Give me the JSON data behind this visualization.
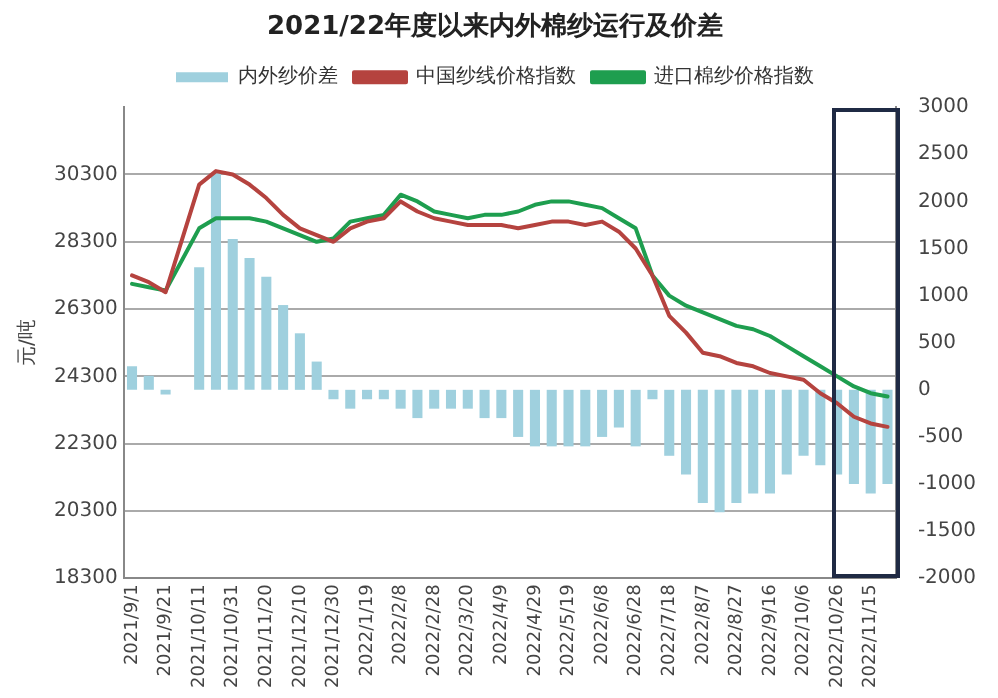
{
  "chart_data": {
    "type": "line",
    "title": "2021/22年度以来内外棉纱运行及价差",
    "ylabel": "元/吨",
    "categories": [
      "2021/9/1",
      null,
      "2021/9/21",
      null,
      "2021/10/11",
      null,
      "2021/10/31",
      null,
      "2021/11/20",
      null,
      "2021/12/10",
      null,
      "2021/12/30",
      null,
      "2022/1/19",
      null,
      "2022/2/8",
      null,
      "2022/2/28",
      null,
      "2022/3/20",
      null,
      "2022/4/9",
      null,
      "2022/4/29",
      null,
      "2022/5/19",
      null,
      "2022/6/8",
      null,
      "2022/6/28",
      null,
      "2022/7/18",
      null,
      "2022/8/7",
      null,
      "2022/8/27",
      null,
      "2022/9/16",
      null,
      "2022/10/6",
      null,
      "2022/10/26",
      null,
      "2022/11/15",
      null
    ],
    "series": [
      {
        "name": "内外纱价差",
        "type": "bar",
        "axis": "y2",
        "color": "#9fd0de",
        "values": [
          250,
          150,
          -50,
          null,
          1300,
          2300,
          1600,
          1400,
          1200,
          900,
          600,
          300,
          -100,
          -200,
          -100,
          -100,
          -200,
          -300,
          -200,
          -200,
          -200,
          -300,
          -300,
          -500,
          -600,
          -600,
          -600,
          -600,
          -500,
          -400,
          -600,
          -100,
          -700,
          -900,
          -1200,
          -1300,
          -1200,
          -1100,
          -1100,
          -900,
          -700,
          -800,
          -900,
          -1000,
          -1100,
          -1000
        ]
      },
      {
        "name": "中国纱线价格指数",
        "color": "#b5433f",
        "values": [
          27300,
          27100,
          26800,
          null,
          30000,
          30400,
          30300,
          30000,
          29600,
          29100,
          28700,
          28500,
          28300,
          28700,
          28900,
          29000,
          29500,
          29200,
          29000,
          28900,
          28800,
          28800,
          28800,
          28700,
          28800,
          28900,
          28900,
          28800,
          28900,
          28600,
          28100,
          27300,
          26100,
          25600,
          25000,
          24900,
          24700,
          24600,
          24400,
          24300,
          24200,
          23800,
          23500,
          23100,
          22900,
          22800
        ]
      },
      {
        "name": "进口棉纱价格指数",
        "color": "#1e9e4f",
        "values": [
          27050,
          26950,
          26850,
          null,
          28700,
          29000,
          29000,
          29000,
          28900,
          28700,
          28500,
          28300,
          28400,
          28900,
          29000,
          29100,
          29700,
          29500,
          29200,
          29100,
          29000,
          29100,
          29100,
          29200,
          29400,
          29500,
          29500,
          29400,
          29300,
          29000,
          28700,
          27300,
          26700,
          26400,
          26200,
          26000,
          25800,
          25700,
          25500,
          25200,
          24900,
          24600,
          24300,
          24000,
          23800,
          23700
        ]
      }
    ],
    "ylim": [
      18300,
      32300
    ],
    "yticks": [
      18300,
      20300,
      22300,
      24300,
      26300,
      28300,
      30300
    ],
    "y2lim": [
      -2000,
      3000
    ],
    "y2ticks": [
      -2000,
      -1500,
      -1000,
      -500,
      0,
      500,
      1000,
      1500,
      2000,
      2500,
      3000
    ],
    "grid": "y",
    "legend": "top",
    "marker": "none",
    "line_style": "solid"
  }
}
